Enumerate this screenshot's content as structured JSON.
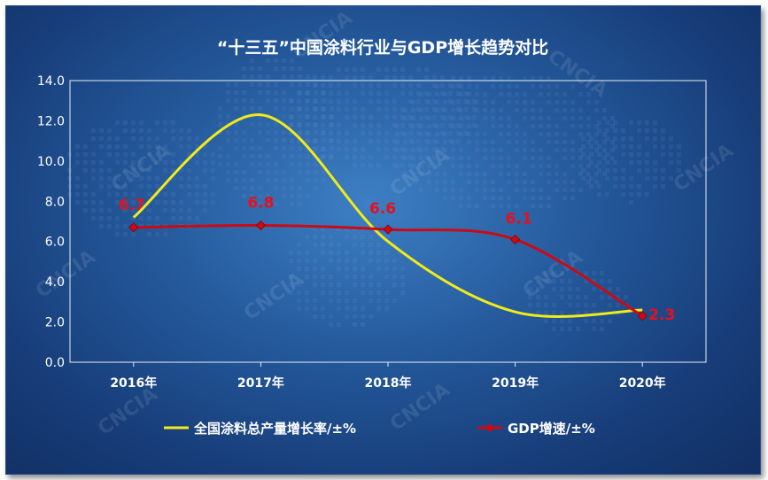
{
  "chart_data": {
    "type": "line",
    "title": "“十三五”中国涂料行业与GDP增长趋势对比",
    "categories": [
      "2016年",
      "2017年",
      "2018年",
      "2019年",
      "2020年"
    ],
    "series": [
      {
        "name": "全国涂料总产量增长率/±%",
        "values": [
          7.2,
          12.3,
          6.0,
          2.5,
          2.6
        ],
        "color": "#f2ea1a",
        "marker": "none",
        "smooth": true
      },
      {
        "name": "GDP增速/±%",
        "values": [
          6.7,
          6.8,
          6.6,
          6.1,
          2.3
        ],
        "color": "#cc0a14",
        "marker": "diamond",
        "smooth": true,
        "data_labels": [
          "6.7",
          "6.8",
          "6.6",
          "6.1",
          "2.3"
        ]
      }
    ],
    "yticks": [
      "0.0",
      "2.0",
      "4.0",
      "6.0",
      "8.0",
      "10.0",
      "12.0",
      "14.0"
    ],
    "ylim": [
      0,
      14
    ],
    "xlabel": "",
    "ylabel": "",
    "grid": false,
    "legend_position": "bottom",
    "background_colors": [
      "#3d7fc4",
      "#112f63"
    ],
    "axis_color": "#e8eef7",
    "label_color": "#e6101e"
  },
  "watermark": "CNCIA"
}
